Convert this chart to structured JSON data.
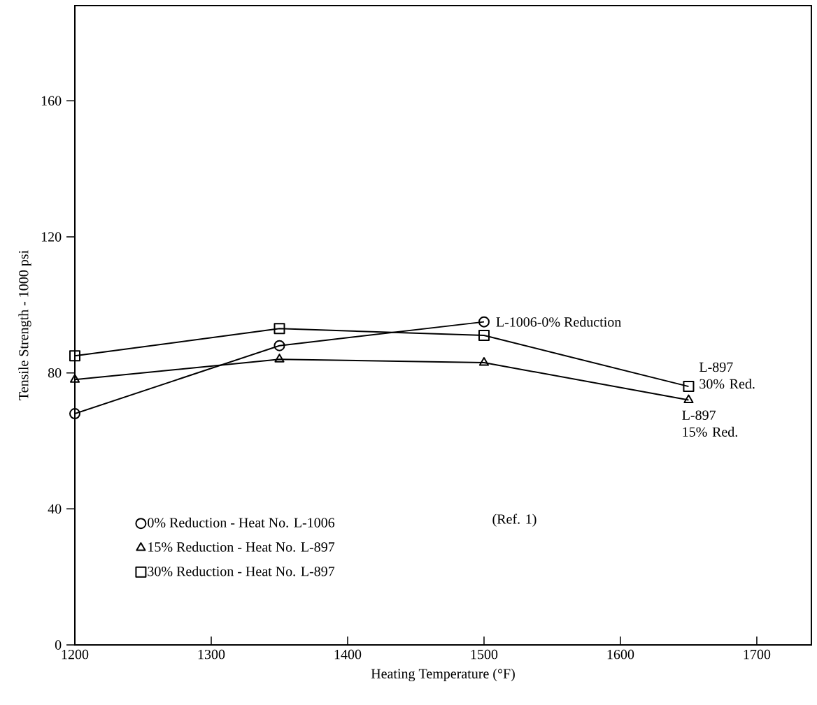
{
  "chart_data": {
    "type": "line",
    "xlabel": "Heating Temperature (°F)",
    "ylabel": "Tensile Strength - 1000 psi",
    "x": [
      1200,
      1350,
      1500,
      1650
    ],
    "series": [
      {
        "name": "0% Reduction - Heat No. L-1006",
        "color": "#000000",
        "marker": "circle",
        "values": [
          68,
          88,
          95,
          null
        ]
      },
      {
        "name": "15% Reduction - Heat No. L-897",
        "color": "#000000",
        "marker": "triangle",
        "values": [
          78,
          84,
          83,
          72
        ]
      },
      {
        "name": "30% Reduction - Heat No. L-897",
        "color": "#000000",
        "marker": "square",
        "values": [
          85,
          93,
          91,
          76
        ]
      }
    ],
    "xlim": [
      1200,
      1740
    ],
    "ylim": [
      0,
      188
    ],
    "xticks": [
      1200,
      1300,
      1400,
      1500,
      1600,
      1700
    ],
    "yticks": [
      0,
      40,
      80,
      120,
      160
    ],
    "grid": false,
    "legend": "bottom left",
    "line_style": "solid",
    "annotations": [
      "L-1006-0% Reduction",
      "L-897 30% Red.",
      "L-897 15% Red.",
      "(Ref. 1)"
    ]
  }
}
